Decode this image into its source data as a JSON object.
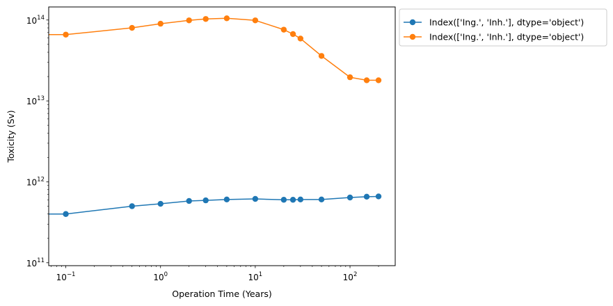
{
  "chart_data": {
    "type": "line",
    "title": "",
    "xlabel": "Operation Time (Years)",
    "ylabel": "Toxicity (Sv)",
    "xscale": "log",
    "yscale": "log",
    "xlim": [
      0.066,
      300
    ],
    "ylim": [
      92000000000.0,
      145000000000000.0
    ],
    "x": [
      0.0001,
      0.1,
      0.5,
      1,
      2,
      3,
      5,
      10,
      20,
      25,
      30,
      50,
      100,
      150,
      200
    ],
    "xticks": [
      {
        "value": 0.1,
        "base": "10",
        "exp": "−1"
      },
      {
        "value": 1,
        "base": "10",
        "exp": "0"
      },
      {
        "value": 10,
        "base": "10",
        "exp": "1"
      },
      {
        "value": 100,
        "base": "10",
        "exp": "2"
      }
    ],
    "yticks": [
      {
        "value": 100000000000.0,
        "base": "10",
        "exp": "11"
      },
      {
        "value": 1000000000000.0,
        "base": "10",
        "exp": "12"
      },
      {
        "value": 10000000000000.0,
        "base": "10",
        "exp": "13"
      },
      {
        "value": 100000000000000.0,
        "base": "10",
        "exp": "14"
      }
    ],
    "grid": false,
    "legend_position": "outside-top-right",
    "series": [
      {
        "name": "Index(['Ing.', 'Inh.'], dtype='object')",
        "color": "#1f77b4",
        "values": [
          400000000000.0,
          400000000000.0,
          500000000000.0,
          535000000000.0,
          580000000000.0,
          590000000000.0,
          605000000000.0,
          615000000000.0,
          600000000000.0,
          600000000000.0,
          605000000000.0,
          605000000000.0,
          640000000000.0,
          655000000000.0,
          660000000000.0
        ]
      },
      {
        "name": "Index(['Ing.', 'Inh.'], dtype='object')",
        "color": "#ff7f0e",
        "values": [
          66000000000000.0,
          66000000000000.0,
          80000000000000.0,
          90000000000000.0,
          99000000000000.0,
          103000000000000.0,
          105000000000000.0,
          99000000000000.0,
          76000000000000.0,
          67000000000000.0,
          59000000000000.0,
          36000000000000.0,
          19600000000000.0,
          18000000000000.0,
          18000000000000.0
        ]
      }
    ]
  }
}
